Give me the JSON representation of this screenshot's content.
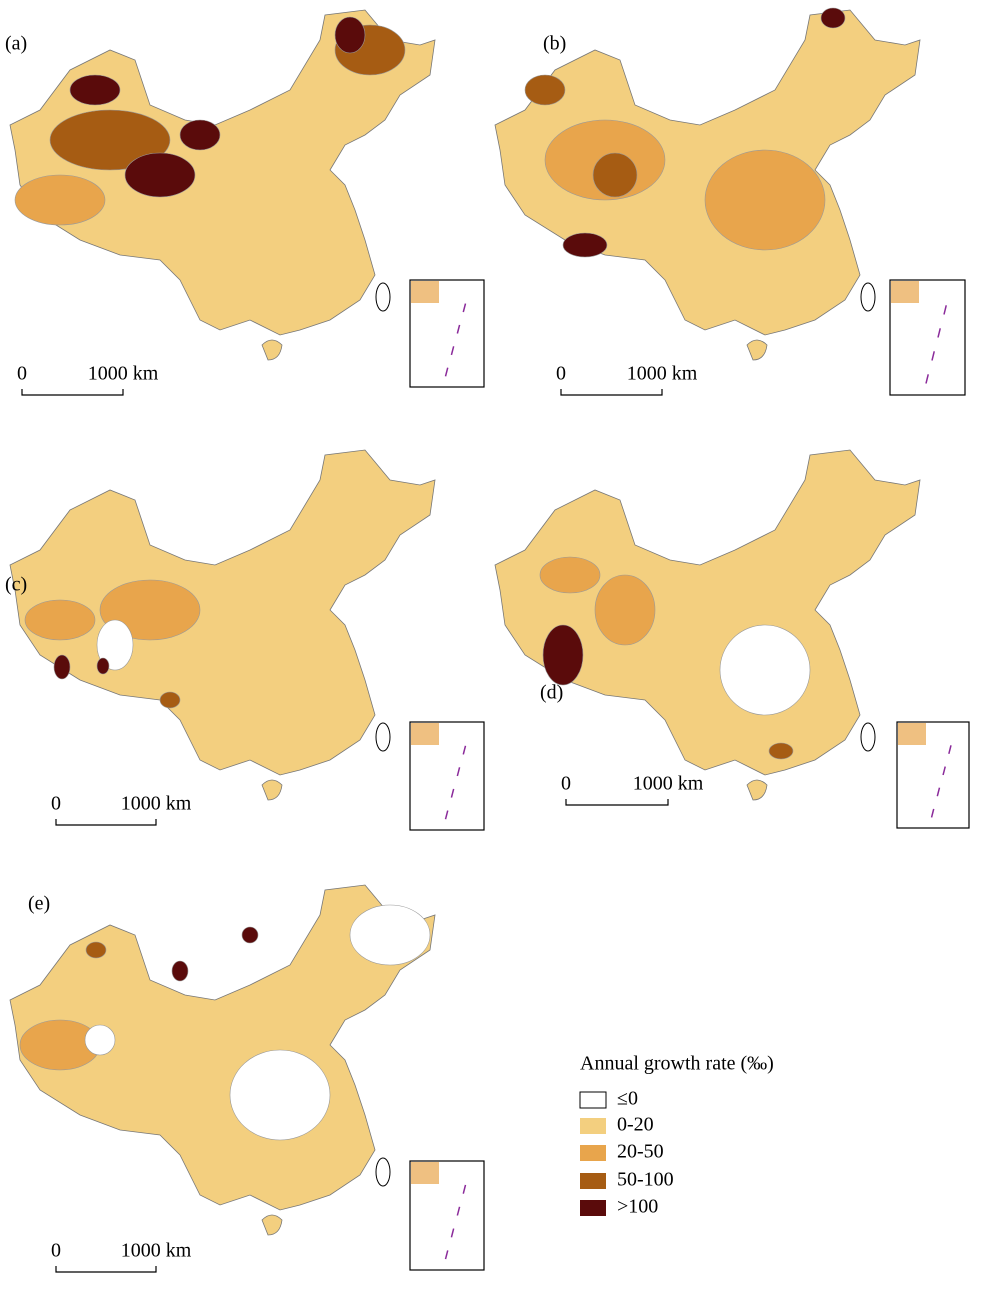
{
  "panels": [
    {
      "label": "(a)",
      "scale": {
        "start": "0",
        "end": "1000 km"
      }
    },
    {
      "label": "(b)",
      "scale": {
        "start": "0",
        "end": "1000 km"
      }
    },
    {
      "label": "(c)",
      "scale": {
        "start": "0",
        "end": "1000 km"
      }
    },
    {
      "label": "(d)",
      "scale": {
        "start": "0",
        "end": "1000 km"
      }
    },
    {
      "label": "(e)",
      "scale": {
        "start": "0",
        "end": "1000 km"
      }
    }
  ],
  "legend": {
    "title": "Annual growth rate (‰)",
    "items": [
      {
        "label": "≤0",
        "color": "#ffffff"
      },
      {
        "label": "0-20",
        "color": "#f3cf7f"
      },
      {
        "label": "20-50",
        "color": "#e8a54c"
      },
      {
        "label": "50-100",
        "color": "#a65c13"
      },
      {
        "label": ">100",
        "color": "#5a0b0b"
      }
    ]
  }
}
